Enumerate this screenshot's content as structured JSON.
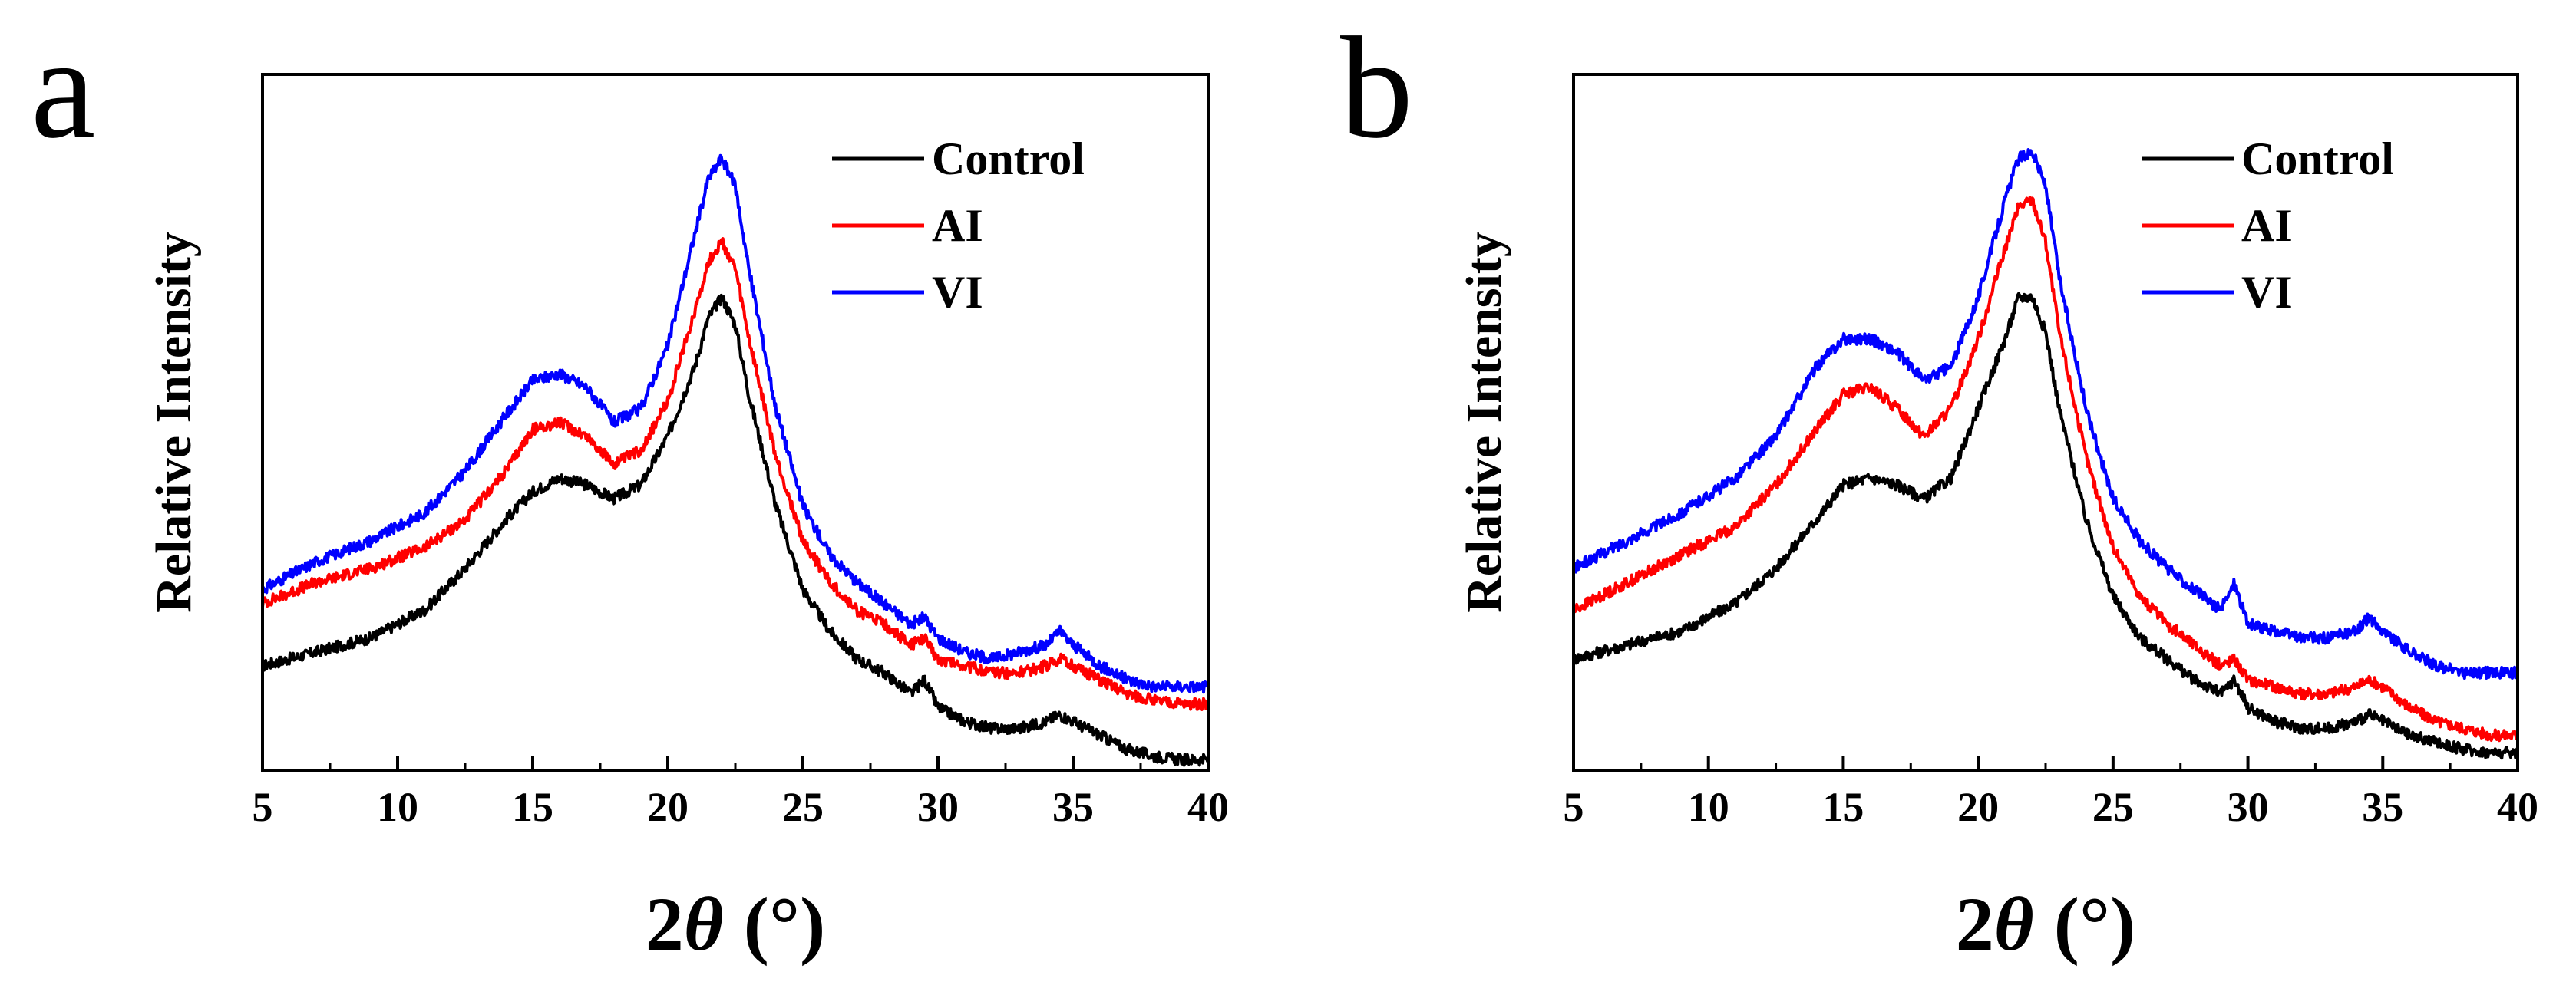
{
  "chart_data": [
    {
      "type": "line",
      "panel_label": "a",
      "xlabel_main": "2",
      "xlabel_theta": "θ",
      "xlabel_unit": "(°)",
      "ylabel": "Relative Intensity",
      "xlim": [
        5,
        40
      ],
      "ylim": [
        0,
        100
      ],
      "xticks": [
        5,
        10,
        15,
        20,
        25,
        30,
        35,
        40
      ],
      "legend_position": "top-right",
      "series": [
        {
          "name": "Control",
          "color": "#000000",
          "x": [
            5,
            7,
            9,
            11,
            12.5,
            14,
            15,
            16,
            17,
            18,
            19,
            20,
            21,
            21.5,
            22,
            22.5,
            23,
            24,
            25,
            26,
            27,
            28,
            29,
            29.5,
            30,
            31,
            32,
            33,
            34,
            34.5,
            35,
            36,
            37,
            38,
            39,
            40
          ],
          "y": [
            15,
            17,
            19,
            23,
            29,
            36,
            40,
            42,
            41,
            39,
            41,
            48,
            58,
            65,
            68,
            64,
            54,
            38,
            26,
            20,
            16,
            14,
            11,
            13,
            9,
            7,
            6,
            6,
            7,
            8,
            7,
            5,
            3,
            2,
            1.5,
            1.5
          ]
        },
        {
          "name": "AI",
          "color": "#ff0000",
          "x": [
            5,
            7,
            9,
            11,
            12.5,
            14,
            15,
            16,
            17,
            18,
            19,
            20,
            21,
            21.5,
            22,
            22.5,
            23,
            24,
            25,
            26,
            27,
            28,
            29,
            29.5,
            30,
            31,
            32,
            33,
            34,
            34.5,
            35,
            36,
            37,
            38,
            39,
            40
          ],
          "y": [
            24,
            27,
            29,
            32,
            36,
            43,
            49,
            50,
            48,
            44,
            46,
            53,
            66,
            73,
            76,
            72,
            62,
            45,
            33,
            27,
            23,
            21,
            18,
            19,
            16,
            15,
            14,
            14,
            15,
            16,
            15,
            13,
            11,
            10,
            9.5,
            9.5
          ]
        },
        {
          "name": "VI",
          "color": "#0000ff",
          "x": [
            5,
            7,
            9,
            11,
            12.5,
            14,
            15,
            16,
            17,
            18,
            19,
            20,
            21,
            21.5,
            22,
            22.5,
            23,
            24,
            25,
            26,
            27,
            28,
            29,
            29.5,
            30,
            31,
            32,
            33,
            34,
            34.5,
            35,
            36,
            37,
            38,
            39,
            40
          ],
          "y": [
            26,
            30,
            33,
            37,
            43,
            51,
            56,
            57,
            55,
            50,
            52,
            61,
            77,
            85,
            88,
            84,
            72,
            52,
            38,
            31,
            27,
            24,
            21,
            22,
            19,
            17,
            16,
            17,
            18,
            20,
            18,
            15,
            13,
            12,
            12,
            12
          ]
        }
      ]
    },
    {
      "type": "line",
      "panel_label": "b",
      "xlabel_main": "2",
      "xlabel_theta": "θ",
      "xlabel_unit": "(°)",
      "ylabel": "Relative Intensity",
      "xlim": [
        5,
        40
      ],
      "ylim": [
        0,
        100
      ],
      "xticks": [
        5,
        10,
        15,
        20,
        25,
        30,
        35,
        40
      ],
      "legend_position": "top-right",
      "series": [
        {
          "name": "Control",
          "color": "#000000",
          "x": [
            5,
            7,
            9,
            11,
            12.5,
            14,
            15,
            16,
            17,
            18,
            19,
            20,
            21,
            21.5,
            22,
            22.5,
            23,
            24,
            25,
            26,
            27,
            28,
            29,
            29.5,
            30,
            31,
            32,
            33,
            34,
            34.5,
            35,
            36,
            37,
            38,
            39,
            40
          ],
          "y": [
            16,
            18,
            20,
            24,
            29,
            36,
            41,
            42,
            41,
            39,
            42,
            52,
            62,
            68,
            68,
            63,
            52,
            36,
            25,
            19,
            16,
            13,
            11,
            13,
            9,
            7,
            6,
            6,
            7,
            8,
            7,
            5,
            4,
            3,
            2.5,
            2.5
          ]
        },
        {
          "name": "AI",
          "color": "#ff0000",
          "x": [
            5,
            7,
            9,
            11,
            12.5,
            14,
            15,
            16,
            17,
            18,
            19,
            20,
            21,
            21.5,
            22,
            22.5,
            23,
            24,
            25,
            26,
            27,
            28,
            29,
            29.5,
            30,
            31,
            32,
            33,
            34,
            34.5,
            35,
            36,
            37,
            38,
            39,
            40
          ],
          "y": [
            23,
            27,
            31,
            35,
            41,
            49,
            54,
            55,
            52,
            48,
            52,
            62,
            75,
            81,
            82,
            76,
            63,
            45,
            32,
            25,
            21,
            18,
            15,
            16,
            13,
            12,
            11,
            11,
            12,
            13,
            12,
            9,
            7,
            6,
            5,
            5
          ]
        },
        {
          "name": "VI",
          "color": "#0000ff",
          "x": [
            5,
            7,
            9,
            11,
            12.5,
            14,
            15,
            16,
            17,
            18,
            19,
            20,
            21,
            21.5,
            22,
            22.5,
            23,
            24,
            25,
            26,
            27,
            28,
            29,
            29.5,
            30,
            31,
            32,
            33,
            34,
            34.5,
            35,
            36,
            37,
            38,
            39,
            40
          ],
          "y": [
            29,
            33,
            37,
            42,
            48,
            58,
            62,
            62,
            60,
            56,
            58,
            68,
            82,
            88,
            89,
            84,
            71,
            52,
            39,
            33,
            29,
            26,
            23,
            27,
            21,
            20,
            19,
            19,
            20,
            22,
            20,
            17,
            15,
            14,
            14,
            14
          ]
        }
      ]
    }
  ]
}
